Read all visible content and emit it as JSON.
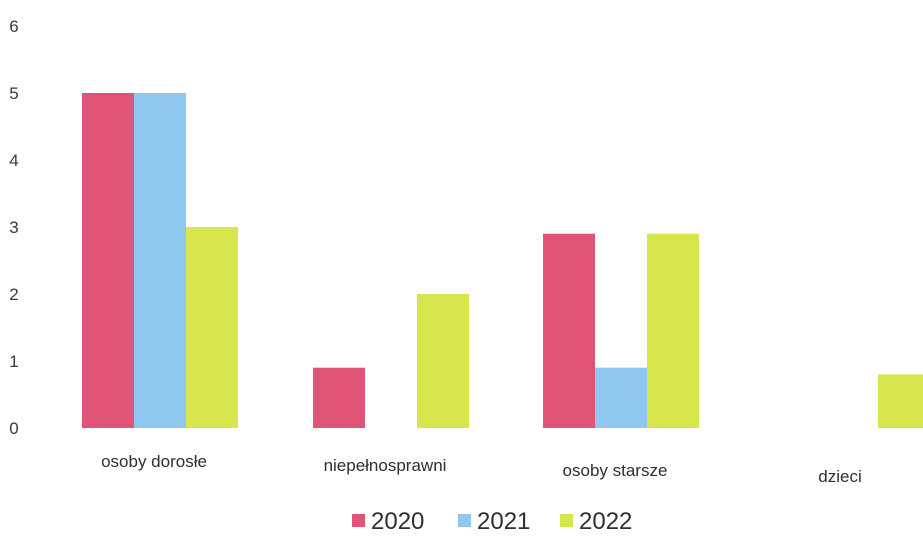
{
  "chart_data": {
    "type": "bar",
    "categories": [
      "osoby dorosłe",
      "niepełnosprawni",
      "osoby starsze",
      "dzieci"
    ],
    "series": [
      {
        "name": "2020",
        "color": "#e05577",
        "values": [
          5,
          0.9,
          2.9,
          0
        ]
      },
      {
        "name": "2021",
        "color": "#8ec8f1",
        "values": [
          5,
          0,
          0.9,
          0
        ]
      },
      {
        "name": "2022",
        "color": "#d8e64d",
        "values": [
          3,
          2,
          2.9,
          0.8
        ]
      }
    ],
    "yticks": [
      "0",
      "1",
      "2",
      "3",
      "4",
      "5",
      "6"
    ],
    "ylim": [
      0,
      6
    ],
    "grid": false,
    "legend_position": "bottom"
  }
}
